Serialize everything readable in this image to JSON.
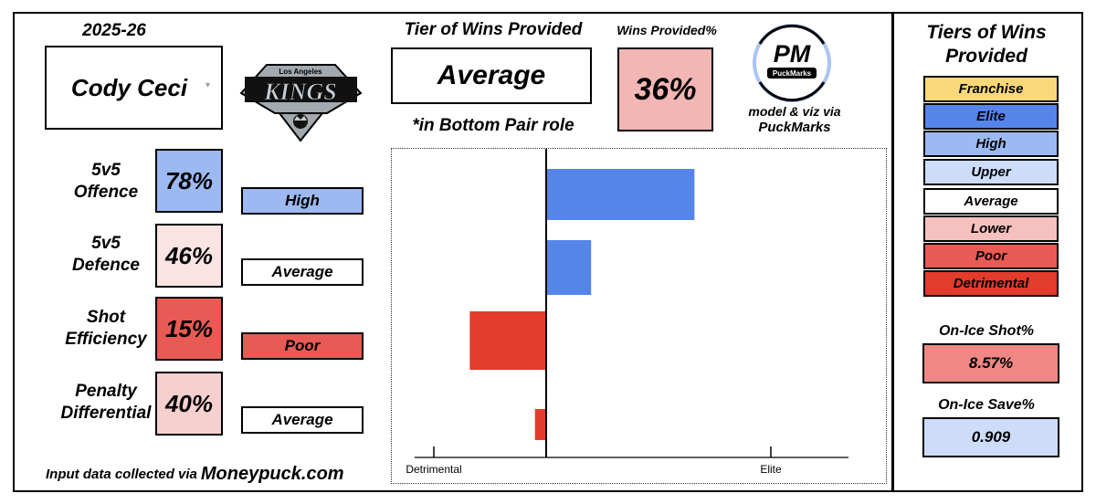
{
  "season": "2025-26",
  "player": {
    "name": "Cody Ceci"
  },
  "team_logo": {
    "city": "Los Angeles",
    "name": "KINGS"
  },
  "tier": {
    "heading": "Tier of Wins Provided",
    "value": "Average",
    "role_note": "*in Bottom Pair role"
  },
  "wins_provided": {
    "heading": "Wins Provided%",
    "value": "36%"
  },
  "brand": {
    "logo_text": "PM",
    "logo_sub": "PuckMarks",
    "credit_line": "model & viz via",
    "credit_name": "PuckMarks"
  },
  "metrics": [
    {
      "label_line1": "5v5",
      "label_line2": "Offence",
      "pct": "78%",
      "tier": "High",
      "pct_color": "#9db9f2",
      "tier_color": "#9db9f2"
    },
    {
      "label_line1": "5v5",
      "label_line2": "Defence",
      "pct": "46%",
      "tier": "Average",
      "pct_color": "#f9e4e3",
      "tier_color": "#ffffff"
    },
    {
      "label_line1": "Shot",
      "label_line2": "Efficiency",
      "pct": "15%",
      "tier": "Poor",
      "pct_color": "#e95a55",
      "tier_color": "#e95a55"
    },
    {
      "label_line1": "Penalty",
      "label_line2": "Differential",
      "pct": "40%",
      "tier": "Average",
      "pct_color": "#f6d0cf",
      "tier_color": "#ffffff"
    }
  ],
  "source": {
    "prefix": "Input data collected via",
    "site": "Moneypuck.com"
  },
  "legend": {
    "heading": "Tiers of Wins Provided",
    "tiers": [
      {
        "label": "Franchise",
        "color": "#f8d878"
      },
      {
        "label": "Elite",
        "color": "#5585eb"
      },
      {
        "label": "High",
        "color": "#9db9f2"
      },
      {
        "label": "Upper",
        "color": "#cddcf9"
      },
      {
        "label": "Average",
        "color": "#ffffff"
      },
      {
        "label": "Lower",
        "color": "#f6c0be"
      },
      {
        "label": "Poor",
        "color": "#e95a55"
      },
      {
        "label": "Detrimental",
        "color": "#e33b2c"
      }
    ]
  },
  "on_ice": {
    "shot_heading": "On-Ice Shot%",
    "shot_value": "8.57%",
    "shot_color": "#ef8884",
    "save_heading": "On-Ice Save%",
    "save_value": "0.909",
    "save_color": "#cddcf9"
  },
  "chart_data": {
    "type": "bar",
    "orientation": "horizontal",
    "categories": [
      "5v5 Offence",
      "5v5 Defence",
      "Shot Efficiency",
      "Penalty Differential"
    ],
    "values": [
      0.66,
      0.2,
      -0.34,
      -0.05
    ],
    "colors": [
      "#5585eb",
      "#5585eb",
      "#e33b2c",
      "#e33b2c"
    ],
    "xlim": [
      -0.5,
      1.0
    ],
    "x_tick_labels": {
      "left": "Detrimental",
      "right": "Elite"
    },
    "grid": false
  }
}
